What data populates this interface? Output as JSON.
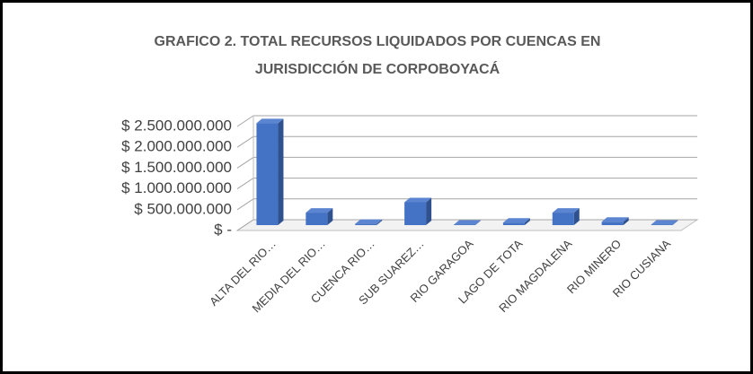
{
  "chart_data": {
    "type": "bar",
    "title": "GRAFICO 2. TOTAL RECURSOS LIQUIDADOS POR CUENCAS EN",
    "subtitle": "JURISDICCIÓN DE CORPOBOYACÁ",
    "categories": [
      "ALTA DEL RIO…",
      "MEDIA DEL RIO…",
      "CUENCA RIO…",
      "SUB SUAREZ…",
      "RIO GARAGOA",
      "LAGO DE TOTA",
      "RIO MAGDALENA",
      "RIO MINERO",
      "RIO CUSIANA"
    ],
    "values": [
      2450000000,
      300000000,
      30000000,
      550000000,
      10000000,
      60000000,
      300000000,
      80000000,
      10000000
    ],
    "color": "#4472c4",
    "ylim": [
      0,
      2500000000
    ],
    "yticks": [
      {
        "value": 0,
        "label": "$ -"
      },
      {
        "value": 500000000,
        "label": "$ 500.000.000"
      },
      {
        "value": 1000000000,
        "label": "$ 1.000.000.000"
      },
      {
        "value": 1500000000,
        "label": "$ 1.500.000.000"
      },
      {
        "value": 2000000000,
        "label": "$ 2.000.000.000"
      },
      {
        "value": 2500000000,
        "label": "$ 2.500.000.000"
      }
    ],
    "grid": true
  }
}
